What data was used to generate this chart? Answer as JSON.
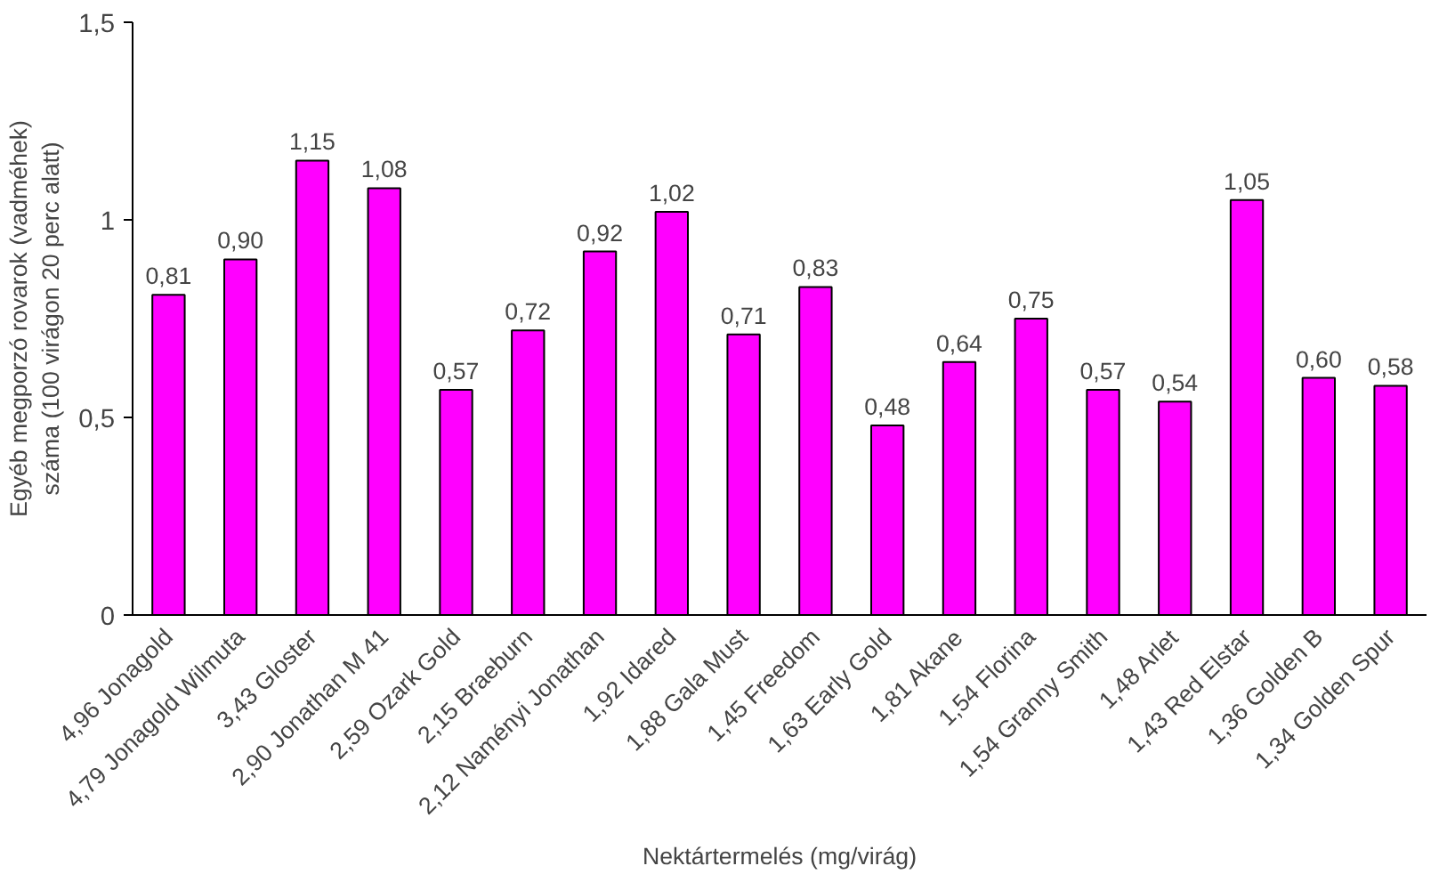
{
  "chart_data": {
    "type": "bar",
    "xlabel": "Nektártermelés (mg/virág)",
    "ylabel": "Egyéb megporzó rovarok (vadméhek) száma (100 virágon 20 perc alatt)",
    "categories": [
      "4,96 Jonagold",
      "4,79 Jonagold Wilmuta",
      "3,43 Gloster",
      "2,90 Jonathan M 41",
      "2,59 Ozark Gold",
      "2,15 Braeburn",
      "2,12 Naményi Jonathan",
      "1,92 Idared",
      "1,88 Gala Must",
      "1,45 Freedom",
      "1,63 Early Gold",
      "1,81 Akane",
      "1,54 Florina",
      "1,54 Granny Smith",
      "1,48 Arlet",
      "1,43 Red Elstar",
      "1,36 Golden B",
      "1,34 Golden Spur"
    ],
    "values": [
      0.81,
      0.9,
      1.15,
      1.08,
      0.57,
      0.72,
      0.92,
      1.02,
      0.71,
      0.83,
      0.48,
      0.64,
      0.75,
      0.57,
      0.54,
      1.05,
      0.6,
      0.58
    ],
    "value_labels": [
      "0,81",
      "0,90",
      "1,15",
      "1,08",
      "0,57",
      "0,72",
      "0,92",
      "1,02",
      "0,71",
      "0,83",
      "0,48",
      "0,64",
      "0,75",
      "0,57",
      "0,54",
      "1,05",
      "0,60",
      "0,58"
    ],
    "color": "#ff00ff",
    "ylim": [
      0,
      1.5
    ],
    "yticks": [
      {
        "value": 0,
        "label": "0"
      },
      {
        "value": 0.5,
        "label": "0,5"
      },
      {
        "value": 1,
        "label": "1"
      },
      {
        "value": 1.5,
        "label": "1,5"
      }
    ],
    "grid": false
  }
}
